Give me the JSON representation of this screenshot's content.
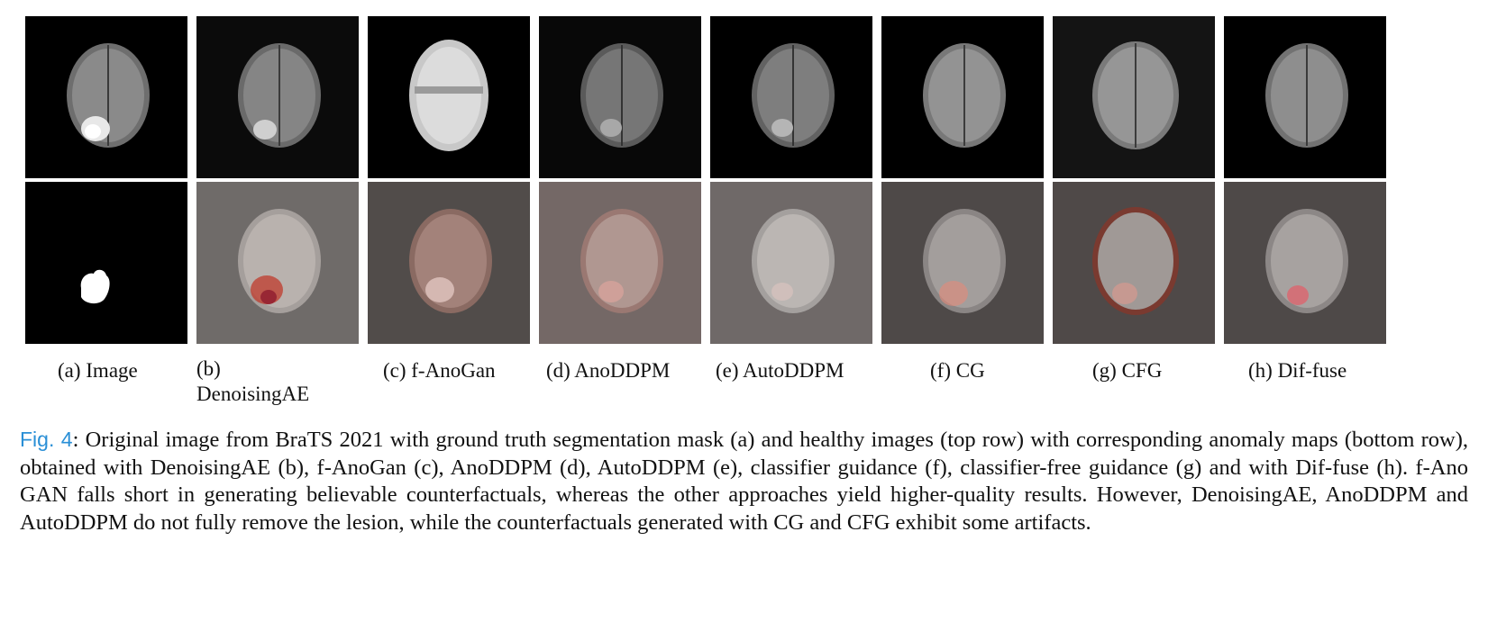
{
  "panels": [
    {
      "id": "a",
      "label": "(a) Image"
    },
    {
      "id": "b",
      "label_line1": "(b)",
      "label_line2": "DenoisingAE"
    },
    {
      "id": "c",
      "label": "(c) f-AnoGan"
    },
    {
      "id": "d",
      "label": "(d) AnoDDPM"
    },
    {
      "id": "e",
      "label": "(e) AutoDDPM"
    },
    {
      "id": "f",
      "label": "(f) CG"
    },
    {
      "id": "g",
      "label": "(g) CFG"
    },
    {
      "id": "h",
      "label": "(h) Dif-fuse"
    }
  ],
  "caption": {
    "fig_ref": "Fig. 4",
    "text": ": Original image from BraTS 2021 with ground truth segmentation mask (a) and healthy images (top row) with corresponding anomaly maps (bottom row), obtained with DenoisingAE (b), f-AnoGan (c), AnoDDPM (d), AutoDDPM (e), classifier guidance (f), classifier-free guidance (g) and with Dif-fuse (h). f-Ano GAN falls short in generating believable counterfactuals, whereas the other approaches yield higher-quality results. However, DenoisingAE, AnoDDPM and AutoDDPM do not fully remove the lesion, while the counterfactuals generated with CG and CFG exhibit some artifacts."
  },
  "colors": {
    "fig_ref": "#2a8fd6",
    "anomaly_overlay": "#c0392b",
    "background_dark": "#000000"
  }
}
